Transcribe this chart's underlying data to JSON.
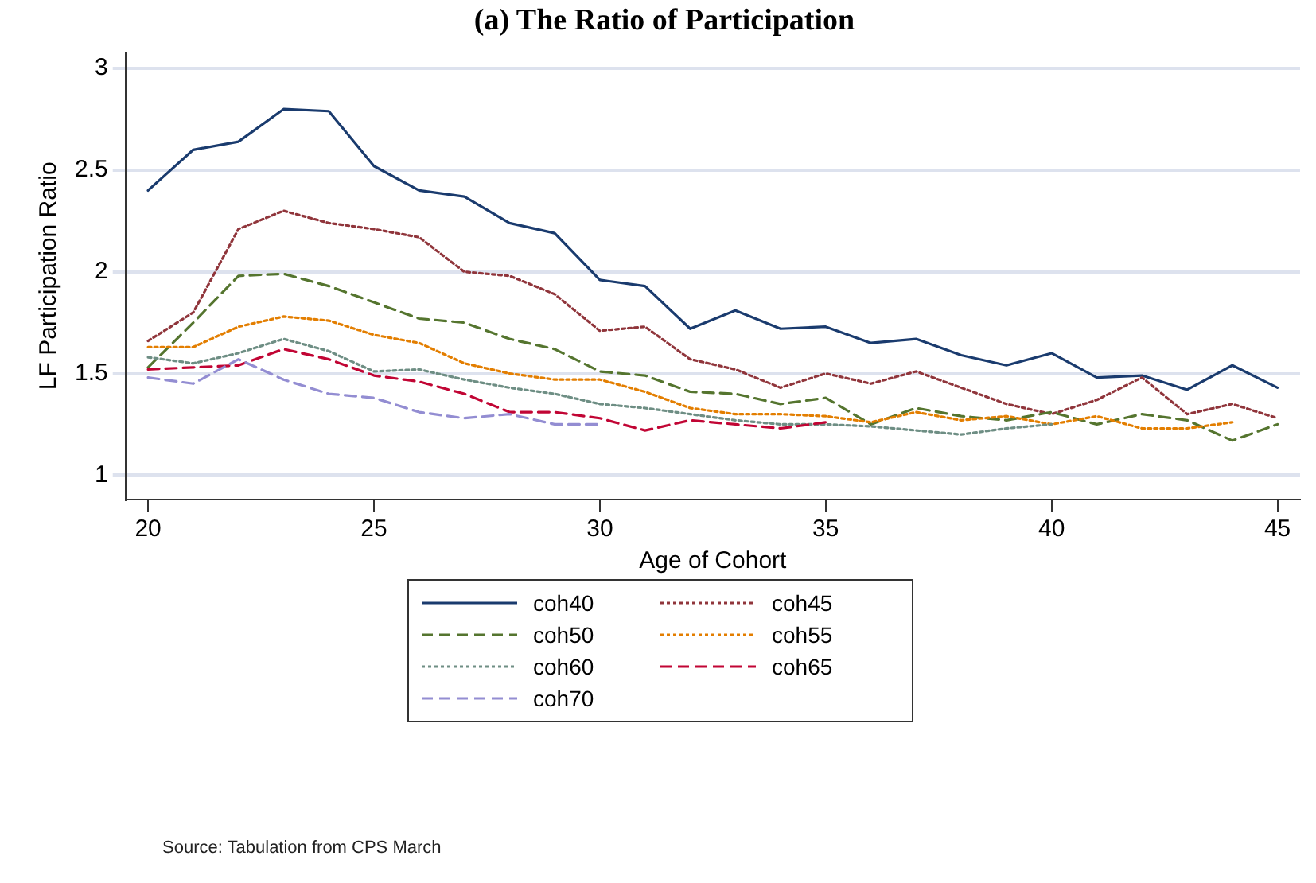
{
  "chart_data": {
    "type": "line",
    "title": "(a) The Ratio of Participation",
    "xlabel": "Age of Cohort",
    "ylabel": "LF Participation Ratio",
    "x": [
      20,
      21,
      22,
      23,
      24,
      25,
      26,
      27,
      28,
      29,
      30,
      31,
      32,
      33,
      34,
      35,
      36,
      37,
      38,
      39,
      40,
      41,
      42,
      43,
      44,
      45
    ],
    "series": [
      {
        "name": "coh40",
        "color": "#1a3b6e",
        "line_style": "solid",
        "values": [
          2.4,
          2.6,
          2.64,
          2.8,
          2.79,
          2.52,
          2.4,
          2.37,
          2.24,
          2.19,
          1.96,
          1.93,
          1.72,
          1.81,
          1.72,
          1.73,
          1.65,
          1.67,
          1.59,
          1.54,
          1.6,
          1.48,
          1.49,
          1.42,
          1.54,
          1.43
        ]
      },
      {
        "name": "coh45",
        "color": "#90353b",
        "line_style": "dotted",
        "values": [
          1.66,
          1.8,
          2.21,
          2.3,
          2.24,
          2.21,
          2.17,
          2.0,
          1.98,
          1.89,
          1.71,
          1.73,
          1.57,
          1.52,
          1.43,
          1.5,
          1.45,
          1.51,
          1.43,
          1.35,
          1.3,
          1.37,
          1.48,
          1.3,
          1.35,
          1.28
        ]
      },
      {
        "name": "coh50",
        "color": "#55752f",
        "line_style": "dashed",
        "values": [
          1.53,
          1.75,
          1.98,
          1.99,
          1.93,
          1.85,
          1.77,
          1.75,
          1.67,
          1.62,
          1.51,
          1.49,
          1.41,
          1.4,
          1.35,
          1.38,
          1.25,
          1.33,
          1.29,
          1.27,
          1.31,
          1.25,
          1.3,
          1.27,
          1.17,
          1.25
        ]
      },
      {
        "name": "coh55",
        "color": "#e37e00",
        "line_style": "dotted",
        "values": [
          1.63,
          1.63,
          1.73,
          1.78,
          1.76,
          1.69,
          1.65,
          1.55,
          1.5,
          1.47,
          1.47,
          1.41,
          1.33,
          1.3,
          1.3,
          1.29,
          1.26,
          1.31,
          1.27,
          1.29,
          1.25,
          1.29,
          1.23,
          1.23,
          1.26,
          null
        ]
      },
      {
        "name": "coh60",
        "color": "#6e8e84",
        "line_style": "dotted",
        "values": [
          1.58,
          1.55,
          1.6,
          1.67,
          1.61,
          1.51,
          1.52,
          1.47,
          1.43,
          1.4,
          1.35,
          1.33,
          1.3,
          1.27,
          1.25,
          1.25,
          1.24,
          1.22,
          1.2,
          1.23,
          1.25,
          null,
          null,
          null,
          null,
          null
        ]
      },
      {
        "name": "coh65",
        "color": "#c10534",
        "line_style": "dashed",
        "values": [
          1.52,
          1.53,
          1.54,
          1.62,
          1.57,
          1.49,
          1.46,
          1.4,
          1.31,
          1.31,
          1.28,
          1.22,
          1.27,
          1.25,
          1.23,
          1.26,
          null,
          null,
          null,
          null,
          null,
          null,
          null,
          null,
          null,
          null
        ]
      },
      {
        "name": "coh70",
        "color": "#938dd2",
        "line_style": "dashed",
        "values": [
          1.48,
          1.45,
          1.57,
          1.47,
          1.4,
          1.38,
          1.31,
          1.28,
          1.3,
          1.25,
          1.25,
          null,
          null,
          null,
          null,
          null,
          null,
          null,
          null,
          null,
          null,
          null,
          null,
          null,
          null,
          null
        ]
      }
    ],
    "xlim": [
      19.5,
      45.5
    ],
    "xticks": [
      20,
      25,
      30,
      35,
      40,
      45
    ],
    "ylim": [
      0.88,
      3.08
    ],
    "yticks": [
      1,
      1.5,
      2,
      2.5,
      3
    ],
    "grid": "y",
    "legend": "bottom",
    "marker": "none",
    "annotations": [
      "Source: Tabulation from CPS March"
    ]
  }
}
